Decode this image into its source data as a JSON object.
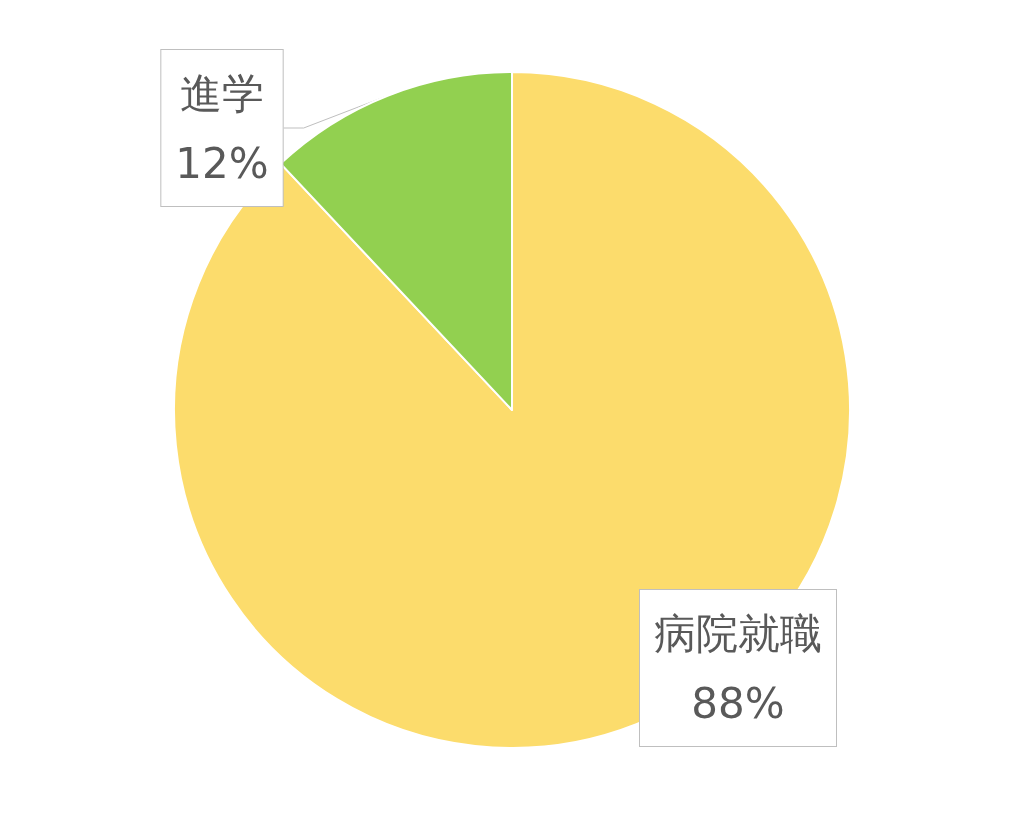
{
  "chart_data": {
    "type": "pie",
    "categories": [
      "病院就職",
      "進学"
    ],
    "values": [
      88,
      12
    ],
    "colors": [
      "#fcdc6c",
      "#92d050"
    ],
    "value_labels": [
      "88%",
      "12%"
    ],
    "legend": false
  }
}
